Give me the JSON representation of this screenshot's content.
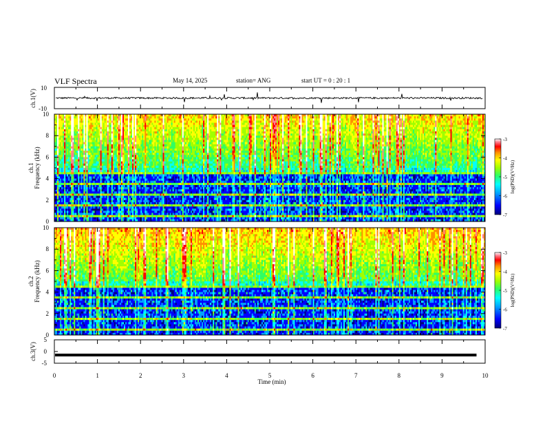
{
  "header": {
    "title": "VLF Spectra",
    "date": "May 14, 2025",
    "station": "station= ANG",
    "start": "start  UT =   0 : 20 : 1"
  },
  "chart_data": [
    {
      "type": "line",
      "panel": "ch1-waveform",
      "ylabel": "ch.1(V)",
      "ylim": [
        -10,
        10
      ],
      "yticks": [
        "10",
        "-10"
      ],
      "xlim": [
        0,
        10
      ],
      "baseline": 0,
      "notes": "noisy waveform near 0 V with sparse short spikes"
    },
    {
      "type": "heatmap",
      "panel": "ch1-spectrogram",
      "ylabel_lines": [
        "ch.1",
        "Frequency (kHz)"
      ],
      "ylim": [
        0,
        10
      ],
      "yticks": [
        "0",
        "2",
        "4",
        "6",
        "8",
        "10"
      ],
      "xlim": [
        0,
        10
      ],
      "colorbar": {
        "label": "log(PSD)(V²/Hz)",
        "ticks": [
          "-3",
          "-4",
          "-5",
          "-6",
          "-7"
        ],
        "range": [
          -7,
          -3
        ]
      }
    },
    {
      "type": "heatmap",
      "panel": "ch2-spectrogram",
      "ylabel_lines": [
        "ch.2",
        "Frequency (kHz)"
      ],
      "ylim": [
        0,
        10
      ],
      "yticks": [
        "0",
        "2",
        "4",
        "6",
        "8",
        "10"
      ],
      "xlim": [
        0,
        10
      ],
      "colorbar": {
        "label": "log(PSD)(V²/Hz)",
        "ticks": [
          "-3",
          "-4",
          "-5",
          "-6",
          "-7"
        ],
        "range": [
          -7,
          -3
        ]
      }
    },
    {
      "type": "line",
      "panel": "ch3-waveform",
      "ylabel": "ch.3(V)",
      "ylim": [
        -5,
        5
      ],
      "yticks": [
        "5",
        "0",
        "-5"
      ],
      "xlim": [
        0,
        10
      ],
      "baseline": -1.5,
      "xlabel": "Time  (min)",
      "xticks": [
        "0",
        "1",
        "2",
        "3",
        "4",
        "5",
        "6",
        "7",
        "8",
        "9",
        "10"
      ]
    }
  ],
  "colors": {
    "colormap": [
      "#00007a",
      "#0000ff",
      "#00a0ff",
      "#00ffff",
      "#30ff60",
      "#a0ff00",
      "#ffff00",
      "#ff9000",
      "#ff0000",
      "#ff8090",
      "#ffffff"
    ]
  }
}
